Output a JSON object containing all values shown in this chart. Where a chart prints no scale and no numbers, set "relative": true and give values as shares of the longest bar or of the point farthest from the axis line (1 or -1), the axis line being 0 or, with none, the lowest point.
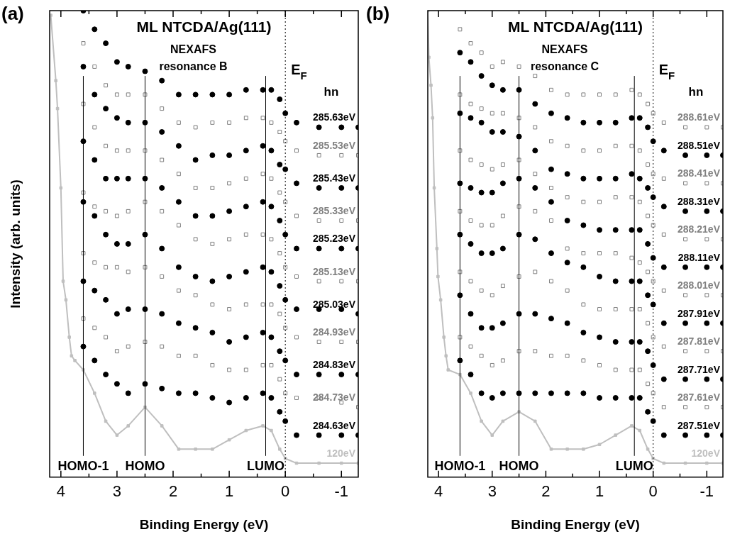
{
  "chart_data": [
    {
      "type": "scatter",
      "title": "ML NTCDA/Ag(111)",
      "subtitle": "NEXAFS resonance B",
      "xlabel": "Binding Energy (eV)",
      "ylabel": "Intensity (arb. units)",
      "legend_title": "hn",
      "relative": true,
      "annotations": [
        "(a)"
      ],
      "xlim": [
        4.2,
        -1.3
      ],
      "xticks": [
        4,
        {
          "value": 3.5,
          "label": null
        },
        3,
        {
          "value": 2.5,
          "label": null
        },
        2,
        {
          "value": 1.5,
          "label": null
        },
        1,
        {
          "value": 0.5,
          "label": null
        },
        0,
        {
          "value": -0.5,
          "label": null
        },
        -1
      ],
      "ref_lines": [
        {
          "axis": "x",
          "value": 3.6,
          "label": "HOMO-1",
          "line_style": "solid"
        },
        {
          "axis": "x",
          "value": 2.5,
          "label": "HOMO",
          "line_style": "solid"
        },
        {
          "axis": "x",
          "value": 0.35,
          "label": "LUMO",
          "line_style": "solid"
        },
        {
          "axis": "x",
          "value": 0,
          "label": "E$_{F}$",
          "line_style": "dotted"
        }
      ],
      "x": [
        3.6,
        3.4,
        3.2,
        3.0,
        2.8,
        2.5,
        2.2,
        1.9,
        1.6,
        1.3,
        1.0,
        0.7,
        0.4,
        0.25,
        0.1,
        0.0,
        -0.2,
        -0.6,
        -1.0,
        -1.3
      ],
      "series": [
        {
          "name": "285.63eV",
          "color": "#000000",
          "marker": "circle",
          "values": [
            1.0,
            0.96,
            0.93,
            0.89,
            0.88,
            0.87,
            0.85,
            0.82,
            0.82,
            0.82,
            0.82,
            0.83,
            0.83,
            0.83,
            0.81,
            0.78,
            0.76,
            0.75,
            0.75,
            0.75
          ]
        },
        {
          "name": "285.53eV",
          "color": "#808080",
          "marker": "square",
          "values": [
            0.93,
            0.88,
            0.84,
            0.82,
            0.82,
            0.82,
            0.79,
            0.76,
            0.75,
            0.76,
            0.76,
            0.77,
            0.77,
            0.76,
            0.74,
            0.72,
            0.7,
            0.69,
            0.69,
            0.69
          ]
        },
        {
          "name": "285.43eV",
          "color": "#000000",
          "marker": "circle",
          "values": [
            0.88,
            0.82,
            0.79,
            0.77,
            0.76,
            0.76,
            0.74,
            0.71,
            0.68,
            0.69,
            0.69,
            0.7,
            0.71,
            0.7,
            0.67,
            0.66,
            0.63,
            0.62,
            0.62,
            0.62
          ]
        },
        {
          "name": "285.33eV",
          "color": "#808080",
          "marker": "square",
          "values": [
            0.8,
            0.75,
            0.71,
            0.7,
            0.7,
            0.7,
            0.68,
            0.65,
            0.62,
            0.62,
            0.63,
            0.64,
            0.65,
            0.64,
            0.61,
            0.59,
            0.56,
            0.55,
            0.55,
            0.55
          ]
        },
        {
          "name": "285.23eV",
          "color": "#000000",
          "marker": "circle",
          "values": [
            0.72,
            0.68,
            0.64,
            0.64,
            0.64,
            0.64,
            0.62,
            0.59,
            0.56,
            0.56,
            0.57,
            0.58,
            0.59,
            0.58,
            0.55,
            0.52,
            0.49,
            0.49,
            0.49,
            0.49
          ]
        },
        {
          "name": "285.13eV",
          "color": "#808080",
          "marker": "square",
          "values": [
            0.61,
            0.58,
            0.57,
            0.56,
            0.57,
            0.59,
            0.57,
            0.54,
            0.51,
            0.5,
            0.51,
            0.52,
            0.52,
            0.51,
            0.48,
            0.45,
            0.43,
            0.42,
            0.42,
            0.42
          ]
        },
        {
          "name": "285.03eV",
          "color": "#000000",
          "marker": "circle",
          "values": [
            0.59,
            0.56,
            0.52,
            0.5,
            0.5,
            0.52,
            0.49,
            0.45,
            0.43,
            0.42,
            0.43,
            0.44,
            0.45,
            0.44,
            0.41,
            0.38,
            0.36,
            0.36,
            0.36,
            0.35
          ]
        },
        {
          "name": "284.93eV",
          "color": "#808080",
          "marker": "square",
          "values": [
            0.48,
            0.46,
            0.45,
            0.45,
            0.44,
            0.45,
            0.43,
            0.4,
            0.39,
            0.37,
            0.36,
            0.37,
            0.37,
            0.37,
            0.35,
            0.32,
            0.3,
            0.29,
            0.29,
            0.29
          ]
        },
        {
          "name": "284.83eV",
          "color": "#000000",
          "marker": "circle",
          "values": [
            0.42,
            0.4,
            0.38,
            0.35,
            0.36,
            0.36,
            0.35,
            0.33,
            0.32,
            0.31,
            0.29,
            0.3,
            0.31,
            0.3,
            0.27,
            0.25,
            0.22,
            0.22,
            0.22,
            0.22
          ]
        },
        {
          "name": "284.73eV",
          "color": "#808080",
          "marker": "square",
          "values": [
            0.34,
            0.32,
            0.3,
            0.27,
            0.28,
            0.29,
            0.28,
            0.26,
            0.26,
            0.24,
            0.23,
            0.23,
            0.24,
            0.24,
            0.21,
            0.18,
            0.17,
            0.17,
            0.16,
            0.15
          ]
        },
        {
          "name": "284.63eV",
          "color": "#000000",
          "marker": "circle",
          "values": [
            0.28,
            0.25,
            0.22,
            0.2,
            0.18,
            0.2,
            0.19,
            0.18,
            0.18,
            0.17,
            0.16,
            0.17,
            0.18,
            0.17,
            0.14,
            0.12,
            0.09,
            0.09,
            0.09,
            0.09
          ]
        },
        {
          "name": "120eV",
          "type": "line",
          "color": "#bfbfbf",
          "marker": "square",
          "x": [
            4.18,
            4.09,
            4.06,
            4.0,
            3.96,
            3.91,
            3.85,
            3.81,
            3.75,
            3.6,
            3.4,
            3.2,
            3.0,
            2.8,
            2.5,
            2.2,
            1.9,
            1.6,
            1.3,
            1.0,
            0.7,
            0.4,
            0.25,
            0.1,
            0.0,
            -0.2,
            -0.6,
            -1.0,
            -1.3
          ],
          "values": [
            0.99,
            0.85,
            0.79,
            0.62,
            0.42,
            0.38,
            0.3,
            0.26,
            0.25,
            0.23,
            0.18,
            0.12,
            0.09,
            0.11,
            0.15,
            0.11,
            0.06,
            0.06,
            0.06,
            0.08,
            0.1,
            0.11,
            0.1,
            0.06,
            0.04,
            0.03,
            0.03,
            0.03,
            0.03
          ]
        }
      ]
    },
    {
      "type": "scatter",
      "title": "ML NTCDA/Ag(111)",
      "subtitle": "NEXAFS resonance C",
      "xlabel": "Binding Energy (eV)",
      "legend_title": "hn",
      "relative": true,
      "annotations": [
        "(b)"
      ],
      "xlim": [
        4.2,
        -1.3
      ],
      "xticks": [
        4,
        {
          "value": 3.5,
          "label": null
        },
        3,
        {
          "value": 2.5,
          "label": null
        },
        2,
        {
          "value": 1.5,
          "label": null
        },
        1,
        {
          "value": 0.5,
          "label": null
        },
        0,
        {
          "value": -0.5,
          "label": null
        },
        -1
      ],
      "ref_lines": [
        {
          "axis": "x",
          "value": 3.6,
          "label": "HOMO-1",
          "line_style": "solid"
        },
        {
          "axis": "x",
          "value": 2.5,
          "label": "HOMO",
          "line_style": "solid"
        },
        {
          "axis": "x",
          "value": 0.35,
          "label": "LUMO",
          "line_style": "solid"
        },
        {
          "axis": "x",
          "value": 0,
          "label": "E$_{F}$",
          "line_style": "dotted"
        }
      ],
      "x": [
        3.6,
        3.4,
        3.2,
        3.0,
        2.8,
        2.5,
        2.2,
        1.9,
        1.6,
        1.3,
        1.0,
        0.7,
        0.4,
        0.25,
        0.1,
        0.0,
        -0.2,
        -0.6,
        -1.0,
        -1.3
      ],
      "series": [
        {
          "name": "288.61eV",
          "color": "#808080",
          "marker": "square",
          "values": [
            0.96,
            0.93,
            0.91,
            0.88,
            0.89,
            0.88,
            0.86,
            0.83,
            0.82,
            0.82,
            0.82,
            0.82,
            0.83,
            0.82,
            0.8,
            0.78,
            0.76,
            0.75,
            0.75,
            0.75
          ]
        },
        {
          "name": "288.51eV",
          "color": "#000000",
          "marker": "circle",
          "values": [
            0.91,
            0.89,
            0.86,
            0.84,
            0.83,
            0.83,
            0.8,
            0.78,
            0.77,
            0.76,
            0.76,
            0.76,
            0.77,
            0.77,
            0.75,
            0.72,
            0.7,
            0.69,
            0.69,
            0.69
          ]
        },
        {
          "name": "288.41eV",
          "color": "#808080",
          "marker": "square",
          "values": [
            0.82,
            0.8,
            0.79,
            0.78,
            0.78,
            0.77,
            0.75,
            0.72,
            0.71,
            0.7,
            0.7,
            0.71,
            0.71,
            0.7,
            0.67,
            0.65,
            0.64,
            0.63,
            0.63,
            0.63
          ]
        },
        {
          "name": "288.31eV",
          "color": "#000000",
          "marker": "circle",
          "values": [
            0.78,
            0.77,
            0.76,
            0.74,
            0.74,
            0.73,
            0.7,
            0.66,
            0.65,
            0.64,
            0.64,
            0.64,
            0.65,
            0.64,
            0.62,
            0.6,
            0.58,
            0.57,
            0.57,
            0.57
          ]
        },
        {
          "name": "288.21eV",
          "color": "#808080",
          "marker": "square",
          "values": [
            0.7,
            0.68,
            0.67,
            0.66,
            0.67,
            0.68,
            0.65,
            0.62,
            0.6,
            0.59,
            0.59,
            0.6,
            0.6,
            0.59,
            0.56,
            0.54,
            0.52,
            0.51,
            0.51,
            0.51
          ]
        },
        {
          "name": "288.11eV",
          "color": "#000000",
          "marker": "circle",
          "values": [
            0.63,
            0.62,
            0.61,
            0.61,
            0.63,
            0.64,
            0.62,
            0.59,
            0.55,
            0.54,
            0.53,
            0.53,
            0.53,
            0.53,
            0.5,
            0.47,
            0.45,
            0.45,
            0.45,
            0.45
          ]
        },
        {
          "name": "288.01eV",
          "color": "#808080",
          "marker": "square",
          "values": [
            0.57,
            0.55,
            0.54,
            0.54,
            0.56,
            0.58,
            0.57,
            0.55,
            0.49,
            0.48,
            0.48,
            0.48,
            0.47,
            0.46,
            0.44,
            0.42,
            0.4,
            0.39,
            0.39,
            0.39
          ]
        },
        {
          "name": "287.91eV",
          "color": "#000000",
          "marker": "circle",
          "values": [
            0.52,
            0.5,
            0.48,
            0.48,
            0.49,
            0.52,
            0.51,
            0.48,
            0.46,
            0.45,
            0.43,
            0.42,
            0.42,
            0.42,
            0.39,
            0.37,
            0.33,
            0.33,
            0.33,
            0.33
          ]
        },
        {
          "name": "287.81eV",
          "color": "#808080",
          "marker": "square",
          "values": [
            0.44,
            0.42,
            0.4,
            0.39,
            0.41,
            0.43,
            0.44,
            0.42,
            0.4,
            0.37,
            0.36,
            0.36,
            0.36,
            0.36,
            0.33,
            0.3,
            0.28,
            0.27,
            0.27,
            0.27
          ]
        },
        {
          "name": "287.71eV",
          "color": "#000000",
          "marker": "circle",
          "values": [
            0.39,
            0.35,
            0.32,
            0.32,
            0.33,
            0.35,
            0.35,
            0.34,
            0.33,
            0.31,
            0.3,
            0.29,
            0.29,
            0.29,
            0.27,
            0.24,
            0.21,
            0.21,
            0.21,
            0.21
          ]
        },
        {
          "name": "287.61eV",
          "color": "#808080",
          "marker": "square",
          "values": [
            0.3,
            0.28,
            0.26,
            0.24,
            0.25,
            0.27,
            0.27,
            0.26,
            0.26,
            0.25,
            0.24,
            0.23,
            0.23,
            0.23,
            0.2,
            0.18,
            0.15,
            0.15,
            0.15,
            0.15
          ]
        },
        {
          "name": "287.51eV",
          "color": "#000000",
          "marker": "circle",
          "values": [
            0.25,
            0.22,
            0.18,
            0.17,
            0.18,
            0.18,
            0.18,
            0.18,
            0.18,
            0.18,
            0.17,
            0.17,
            0.17,
            0.17,
            0.14,
            0.12,
            0.09,
            0.09,
            0.09,
            0.09
          ]
        },
        {
          "name": "120eV",
          "type": "line",
          "color": "#bfbfbf",
          "marker": "square",
          "x": [
            4.2,
            4.18,
            4.14,
            4.11,
            4.08,
            4.03,
            4.01,
            3.96,
            3.9,
            3.86,
            3.82,
            3.6,
            3.4,
            3.2,
            3.0,
            2.8,
            2.5,
            2.2,
            1.9,
            1.6,
            1.3,
            1.0,
            0.7,
            0.4,
            0.25,
            0.1,
            0.0,
            -0.2,
            -0.6,
            -1.0,
            -1.3
          ],
          "values": [
            1.0,
            0.9,
            0.84,
            0.77,
            0.62,
            0.49,
            0.43,
            0.38,
            0.3,
            0.26,
            0.23,
            0.22,
            0.18,
            0.12,
            0.09,
            0.12,
            0.14,
            0.12,
            0.06,
            0.06,
            0.06,
            0.07,
            0.09,
            0.11,
            0.1,
            0.06,
            0.04,
            0.03,
            0.03,
            0.03,
            0.03
          ]
        }
      ]
    }
  ]
}
